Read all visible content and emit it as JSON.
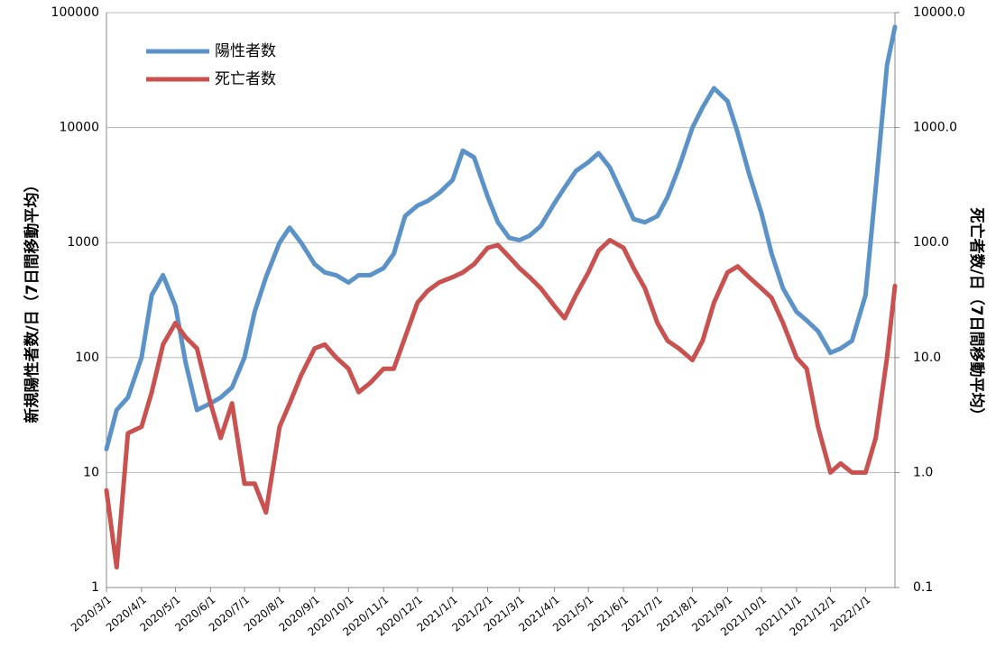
{
  "chart_data": {
    "type": "line",
    "y_label": "新規陽性者数/日（7日間移動平均）",
    "y2_label": "死亡者数/日（7日間移動平均）",
    "log_scale": true,
    "grid": true,
    "legend": "upper left",
    "xlim": [
      "2020/3/1",
      "2022/1/27"
    ],
    "xticks": [
      "2020/3/1",
      "2020/4/1",
      "2020/5/1",
      "2020/6/1",
      "2020/7/1",
      "2020/8/1",
      "2020/9/1",
      "2020/10/1",
      "2020/11/1",
      "2020/12/1",
      "2021/1/1",
      "2021/2/1",
      "2021/3/1",
      "2021/4/1",
      "2021/5/1",
      "2021/6/1",
      "2021/7/1",
      "2021/8/1",
      "2021/9/1",
      "2021/10/1",
      "2021/11/1",
      "2021/12/1",
      "2022/1/1"
    ],
    "ylim": [
      1,
      100000
    ],
    "yticks": [
      1,
      10,
      100,
      1000,
      10000,
      100000
    ],
    "y2lim": [
      0.1,
      10000
    ],
    "y2ticks": [
      0.1,
      {
        "value": 1,
        "label": "1.0"
      },
      {
        "value": 10,
        "label": "10.0"
      },
      {
        "value": 100,
        "label": "100.0"
      },
      {
        "value": 1000,
        "label": "1000.0"
      },
      {
        "value": 10000,
        "label": "10000.0"
      }
    ],
    "x": [
      "2020/3/1",
      "2020/3/10",
      "2020/3/20",
      "2020/4/1",
      "2020/4/10",
      "2020/4/20",
      "2020/5/1",
      "2020/5/10",
      "2020/5/20",
      "2020/6/1",
      "2020/6/10",
      "2020/6/20",
      "2020/7/1",
      "2020/7/10",
      "2020/7/20",
      "2020/8/1",
      "2020/8/10",
      "2020/8/20",
      "2020/9/1",
      "2020/9/10",
      "2020/9/20",
      "2020/10/1",
      "2020/10/10",
      "2020/10/20",
      "2020/11/1",
      "2020/11/10",
      "2020/11/20",
      "2020/12/1",
      "2020/12/10",
      "2020/12/20",
      "2021/1/1",
      "2021/1/10",
      "2021/1/20",
      "2021/2/1",
      "2021/2/10",
      "2021/2/20",
      "2021/3/1",
      "2021/3/10",
      "2021/3/20",
      "2021/4/1",
      "2021/4/10",
      "2021/4/20",
      "2021/5/1",
      "2021/5/10",
      "2021/5/20",
      "2021/6/1",
      "2021/6/10",
      "2021/6/20",
      "2021/7/1",
      "2021/7/10",
      "2021/7/20",
      "2021/8/1",
      "2021/8/10",
      "2021/8/20",
      "2021/9/1",
      "2021/9/10",
      "2021/9/20",
      "2021/10/1",
      "2021/10/10",
      "2021/10/20",
      "2021/11/1",
      "2021/11/10",
      "2021/11/20",
      "2021/12/1",
      "2021/12/10",
      "2021/12/20",
      "2022/1/1",
      "2022/1/10",
      "2022/1/20",
      "2022/1/27"
    ],
    "series": [
      {
        "name": "陽性者数",
        "color": "#5b93c9",
        "axis": "y",
        "values": [
          16,
          35,
          45,
          100,
          350,
          520,
          280,
          90,
          35,
          40,
          45,
          55,
          100,
          250,
          500,
          1000,
          1350,
          1000,
          650,
          550,
          520,
          450,
          520,
          520,
          600,
          800,
          1700,
          2100,
          2300,
          2700,
          3500,
          6300,
          5500,
          2500,
          1500,
          1100,
          1050,
          1150,
          1400,
          2200,
          3000,
          4200,
          5000,
          6000,
          4500,
          2500,
          1600,
          1500,
          1700,
          2500,
          4500,
          10000,
          15000,
          22000,
          17000,
          9000,
          4000,
          1800,
          800,
          400,
          250,
          210,
          170,
          110,
          120,
          140,
          350,
          3000,
          35000,
          75000
        ]
      },
      {
        "name": "死亡者数",
        "color": "#c9514f",
        "axis": "y2",
        "values": [
          0.7,
          0.15,
          2.2,
          2.5,
          5,
          13,
          20,
          15,
          12,
          4,
          2,
          4,
          0.8,
          0.8,
          0.45,
          2.5,
          4,
          7,
          12,
          13,
          10,
          8,
          5,
          6,
          8,
          8,
          15,
          30,
          38,
          45,
          50,
          55,
          65,
          90,
          95,
          75,
          60,
          50,
          40,
          28,
          22,
          35,
          55,
          85,
          105,
          90,
          60,
          40,
          20,
          14,
          12,
          9.5,
          14,
          30,
          55,
          62,
          50,
          40,
          33,
          20,
          10,
          8,
          2.5,
          1.0,
          1.2,
          1.0,
          1.0,
          2,
          10,
          42
        ]
      }
    ]
  }
}
